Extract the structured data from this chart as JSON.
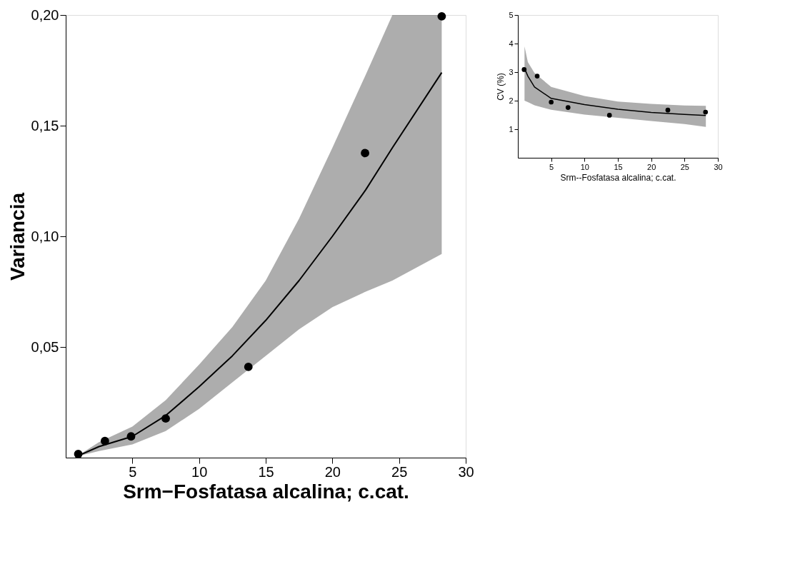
{
  "chart_data": [
    {
      "type": "scatter",
      "xlabel": "Srm−Fosfatasa alcalina; c.cat.",
      "ylabel": "Variancia",
      "xlim": [
        0,
        30
      ],
      "ylim": [
        0,
        0.2
      ],
      "xticks": [
        5,
        10,
        15,
        20,
        25,
        30
      ],
      "yticks": [
        {
          "value": 0.05,
          "label": "0,05"
        },
        {
          "value": 0.1,
          "label": "0,10"
        },
        {
          "value": 0.15,
          "label": "0,15"
        },
        {
          "value": 0.2,
          "label": "0,20"
        }
      ],
      "series": [
        {
          "type": "line",
          "line_style": "solid",
          "marker": "none",
          "color": "#000000",
          "x": [
            1,
            2.5,
            5,
            7.5,
            10,
            12.5,
            15,
            17.5,
            20,
            22.5,
            24.5,
            28.2
          ],
          "values": [
            0.001,
            0.005,
            0.0096,
            0.019,
            0.032,
            0.046,
            0.062,
            0.08,
            0.1,
            0.121,
            0.14,
            0.174
          ],
          "lower": [
            0.0008,
            0.003,
            0.006,
            0.012,
            0.022,
            0.034,
            0.046,
            0.058,
            0.068,
            0.075,
            0.08,
            0.092
          ],
          "upper": [
            0.0012,
            0.007,
            0.014,
            0.026,
            0.042,
            0.059,
            0.08,
            0.108,
            0.14,
            0.173,
            0.2,
            0.2
          ]
        },
        {
          "marker": "circle",
          "color": "#000000",
          "x": [
            0.94,
            2.94,
            4.9,
            7.5,
            13.7,
            22.45,
            28.2
          ],
          "values": [
            0.0016,
            0.0075,
            0.0096,
            0.0177,
            0.041,
            0.1376,
            0.1994
          ]
        }
      ]
    },
    {
      "type": "scatter",
      "xlabel": "Srm--Fosfatasa alcalina; c.cat.",
      "ylabel": "CV (%)",
      "xlim": [
        0,
        30
      ],
      "ylim": [
        0,
        5
      ],
      "xticks": [
        5,
        10,
        15,
        20,
        25,
        30
      ],
      "yticks": [
        1,
        2,
        3,
        4,
        5
      ],
      "series": [
        {
          "type": "line",
          "line_style": "solid",
          "marker": "none",
          "color": "#000000",
          "x": [
            1,
            1.5,
            2.5,
            5,
            10,
            15,
            20,
            25,
            28.2
          ],
          "values": [
            3.13,
            2.86,
            2.48,
            2.08,
            1.86,
            1.7,
            1.59,
            1.52,
            1.48
          ],
          "lower": [
            2.0,
            1.95,
            1.84,
            1.68,
            1.51,
            1.4,
            1.29,
            1.18,
            1.08
          ],
          "upper": [
            3.9,
            3.35,
            2.97,
            2.48,
            2.16,
            1.97,
            1.89,
            1.83,
            1.82
          ]
        },
        {
          "marker": "circle",
          "color": "#000000",
          "x": [
            0.94,
            2.9,
            5.0,
            7.53,
            13.74,
            22.5,
            28.15
          ],
          "values": [
            3.09,
            2.86,
            1.95,
            1.76,
            1.49,
            1.67,
            1.6
          ]
        }
      ]
    }
  ]
}
